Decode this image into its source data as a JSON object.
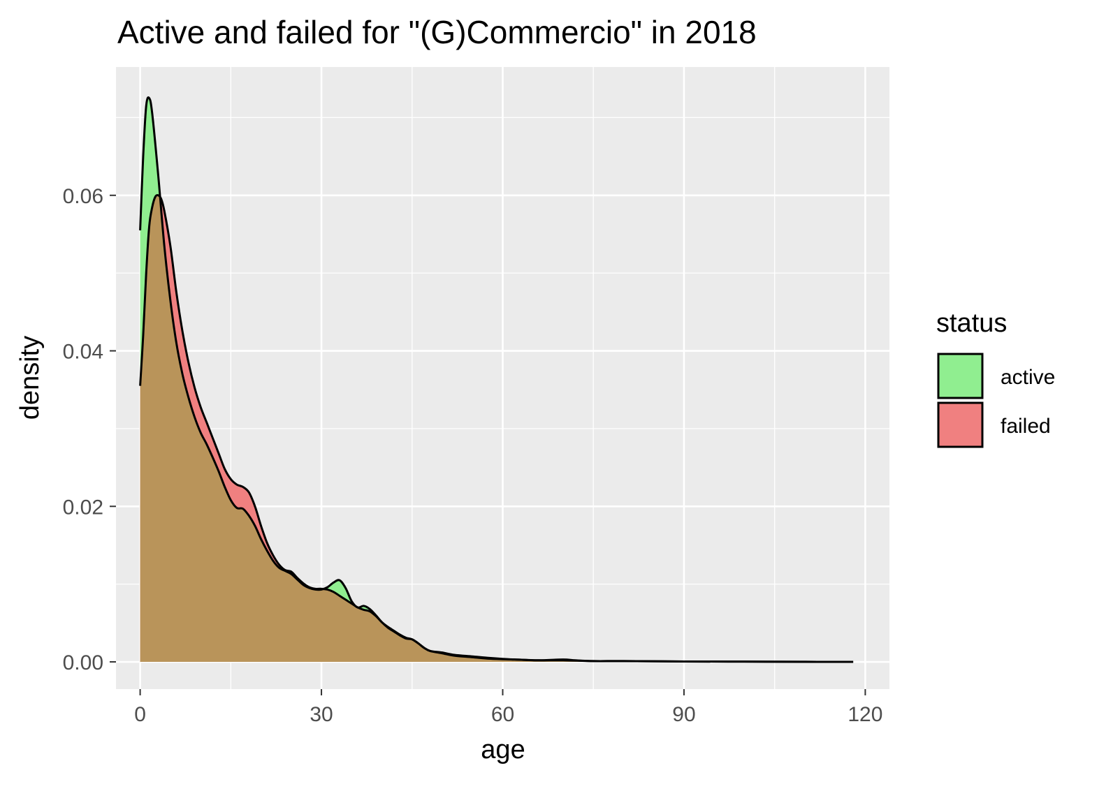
{
  "chart_data": {
    "type": "area",
    "title": "Active and failed for \"(G)Commercio\" in 2018",
    "xlabel": "age",
    "ylabel": "density",
    "xlim": [
      -4,
      124
    ],
    "ylim": [
      -0.0035,
      0.0765
    ],
    "x_ticks": [
      0,
      30,
      60,
      90,
      120
    ],
    "x_tick_labels": [
      "0",
      "30",
      "60",
      "90",
      "120"
    ],
    "y_ticks": [
      0,
      0.02,
      0.04,
      0.06
    ],
    "y_tick_labels": [
      "0.00",
      "0.02",
      "0.04",
      "0.06"
    ],
    "grid": true,
    "legend": {
      "title": "status",
      "placement": "right"
    },
    "series": [
      {
        "name": "active",
        "color": "#90ee90",
        "points": [
          [
            0,
            0.0555
          ],
          [
            0.5,
            0.065
          ],
          [
            1,
            0.0715
          ],
          [
            1.5,
            0.0725
          ],
          [
            2,
            0.0705
          ],
          [
            3,
            0.0625
          ],
          [
            4,
            0.0535
          ],
          [
            5,
            0.0465
          ],
          [
            6,
            0.041
          ],
          [
            7,
            0.037
          ],
          [
            8,
            0.034
          ],
          [
            9,
            0.0315
          ],
          [
            10,
            0.0295
          ],
          [
            11,
            0.028
          ],
          [
            12,
            0.0263
          ],
          [
            13,
            0.0245
          ],
          [
            14,
            0.0225
          ],
          [
            15,
            0.0208
          ],
          [
            16,
            0.0198
          ],
          [
            17,
            0.0197
          ],
          [
            18,
            0.0188
          ],
          [
            19,
            0.0175
          ],
          [
            20,
            0.0158
          ],
          [
            21,
            0.0143
          ],
          [
            22,
            0.013
          ],
          [
            23,
            0.0121
          ],
          [
            24,
            0.0117
          ],
          [
            25,
            0.0113
          ],
          [
            26,
            0.0106
          ],
          [
            27,
            0.0099
          ],
          [
            28,
            0.0095
          ],
          [
            29,
            0.0093
          ],
          [
            30,
            0.0093
          ],
          [
            31,
            0.0096
          ],
          [
            32,
            0.0102
          ],
          [
            33,
            0.0105
          ],
          [
            34,
            0.0095
          ],
          [
            35,
            0.0078
          ],
          [
            36,
            0.007
          ],
          [
            37,
            0.0072
          ],
          [
            38,
            0.0068
          ],
          [
            39,
            0.006
          ],
          [
            40,
            0.0051
          ],
          [
            41,
            0.0044
          ],
          [
            42,
            0.0039
          ],
          [
            43,
            0.0034
          ],
          [
            44,
            0.003
          ],
          [
            45,
            0.0029
          ],
          [
            46,
            0.0024
          ],
          [
            47,
            0.0018
          ],
          [
            48,
            0.0014
          ],
          [
            50,
            0.0011
          ],
          [
            52,
            0.0008
          ],
          [
            55,
            0.0006
          ],
          [
            58,
            0.0004
          ],
          [
            62,
            0.0003
          ],
          [
            66,
            0.0002
          ],
          [
            70,
            0.0003
          ],
          [
            72,
            0.0002
          ],
          [
            75,
            0.0001
          ],
          [
            80,
            0.0001
          ],
          [
            90,
            5e-05
          ],
          [
            100,
            3e-05
          ],
          [
            110,
            1e-05
          ],
          [
            118,
            0
          ]
        ]
      },
      {
        "name": "failed",
        "color": "#f08080",
        "points": [
          [
            0,
            0.0355
          ],
          [
            0.5,
            0.042
          ],
          [
            1,
            0.05
          ],
          [
            1.5,
            0.056
          ],
          [
            2,
            0.0585
          ],
          [
            2.5,
            0.0598
          ],
          [
            3,
            0.06
          ],
          [
            3.5,
            0.0595
          ],
          [
            4,
            0.058
          ],
          [
            5,
            0.0535
          ],
          [
            6,
            0.0475
          ],
          [
            7,
            0.0425
          ],
          [
            8,
            0.0385
          ],
          [
            9,
            0.0353
          ],
          [
            10,
            0.0328
          ],
          [
            11,
            0.0308
          ],
          [
            12,
            0.0288
          ],
          [
            13,
            0.0268
          ],
          [
            14,
            0.0248
          ],
          [
            15,
            0.0235
          ],
          [
            16,
            0.0228
          ],
          [
            17,
            0.0225
          ],
          [
            18,
            0.0218
          ],
          [
            19,
            0.02
          ],
          [
            20,
            0.0175
          ],
          [
            21,
            0.0153
          ],
          [
            22,
            0.0137
          ],
          [
            23,
            0.0125
          ],
          [
            24,
            0.0118
          ],
          [
            25,
            0.0116
          ],
          [
            26,
            0.0108
          ],
          [
            27,
            0.0101
          ],
          [
            28,
            0.0096
          ],
          [
            29,
            0.0094
          ],
          [
            30,
            0.0094
          ],
          [
            31,
            0.0093
          ],
          [
            32,
            0.009
          ],
          [
            33,
            0.0085
          ],
          [
            34,
            0.008
          ],
          [
            35,
            0.0075
          ],
          [
            36,
            0.007
          ],
          [
            37,
            0.0067
          ],
          [
            38,
            0.0065
          ],
          [
            39,
            0.0059
          ],
          [
            40,
            0.0051
          ],
          [
            41,
            0.0045
          ],
          [
            42,
            0.004
          ],
          [
            43,
            0.0035
          ],
          [
            44,
            0.0031
          ],
          [
            45,
            0.0029
          ],
          [
            46,
            0.0024
          ],
          [
            47,
            0.0018
          ],
          [
            48,
            0.0014
          ],
          [
            50,
            0.0012
          ],
          [
            52,
            0.0009
          ],
          [
            55,
            0.0007
          ],
          [
            58,
            0.0005
          ],
          [
            62,
            0.0003
          ],
          [
            66,
            0.0002
          ],
          [
            70,
            0.0002
          ],
          [
            75,
            0.0001
          ],
          [
            80,
            0.0001
          ],
          [
            90,
            5e-05
          ],
          [
            100,
            3e-05
          ],
          [
            110,
            1e-05
          ],
          [
            118,
            0
          ]
        ]
      }
    ],
    "overlap_color": "#b9945a"
  }
}
